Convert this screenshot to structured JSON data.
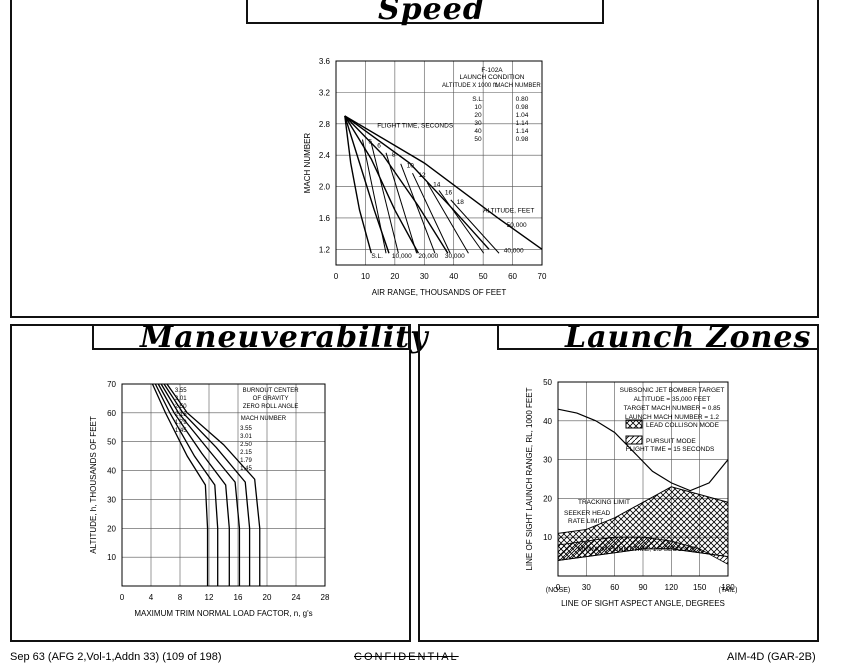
{
  "footer": {
    "left": "Sep 63 (AFG 2,Vol-1,Addn 33) (109 of 198)",
    "center": "CONFIDENTIAL",
    "right": "AIM-4D (GAR-2B)"
  },
  "panels": {
    "speed_title": "Speed",
    "maneuver_title": "Maneuverability",
    "launch_title": "Launch Zones"
  },
  "chart_data": [
    {
      "type": "line",
      "title": "Speed",
      "xlabel": "AIR RANGE, THOUSANDS OF FEET",
      "ylabel": "MACH NUMBER",
      "xlim": [
        0,
        70
      ],
      "ylim": [
        1.0,
        3.6
      ],
      "xticks": [
        "0",
        "10",
        "20",
        "30",
        "40",
        "50",
        "60",
        "70"
      ],
      "yticks": [
        "1.2",
        "1.6",
        "2.0",
        "2.4",
        "2.8",
        "3.2",
        "3.6"
      ],
      "grid": true,
      "legend": {
        "header": [
          "F-102A",
          "LAUNCH CONDITION"
        ],
        "col1": "ALTITUDE X 1000 ft.",
        "col2": "MACH NUMBER",
        "rows": [
          [
            "S.L.",
            "0.80"
          ],
          [
            "10",
            "0.98"
          ],
          [
            "20",
            "1.04"
          ],
          [
            "30",
            "1.14"
          ],
          [
            "40",
            "1.14"
          ],
          [
            "50",
            "0.98"
          ]
        ]
      },
      "labels": {
        "flight_time": "FLIGHT TIME, SECONDS",
        "altitude": "ALTITUDE, FEET"
      },
      "series": [
        {
          "name": "S.L.",
          "x": [
            3,
            5,
            8,
            12
          ],
          "y": [
            2.9,
            2.3,
            1.7,
            1.15
          ]
        },
        {
          "name": "10,000",
          "x": [
            3,
            8,
            13,
            18
          ],
          "y": [
            2.9,
            2.3,
            1.7,
            1.15
          ]
        },
        {
          "name": "20,000",
          "x": [
            3,
            12,
            20,
            28
          ],
          "y": [
            2.9,
            2.35,
            1.7,
            1.15
          ]
        },
        {
          "name": "30,000",
          "x": [
            3,
            16,
            28,
            38
          ],
          "y": [
            2.9,
            2.4,
            1.75,
            1.15
          ]
        },
        {
          "name": "40,000",
          "x": [
            3,
            25,
            40,
            52
          ],
          "y": [
            2.9,
            2.3,
            1.7,
            1.2
          ]
        },
        {
          "name": "50,000",
          "x": [
            3,
            30,
            55,
            70
          ],
          "y": [
            2.9,
            2.3,
            1.6,
            1.2
          ]
        }
      ],
      "time_labels": [
        {
          "text": "5",
          "x": 11,
          "y": 2.55
        },
        {
          "text": "6",
          "x": 14,
          "y": 2.5
        },
        {
          "text": "8",
          "x": 19,
          "y": 2.38
        },
        {
          "text": "10",
          "x": 24,
          "y": 2.24
        },
        {
          "text": "12",
          "x": 28,
          "y": 2.12
        },
        {
          "text": "14",
          "x": 33,
          "y": 2.0
        },
        {
          "text": "16",
          "x": 37,
          "y": 1.9
        },
        {
          "text": "18",
          "x": 41,
          "y": 1.78
        }
      ],
      "alt_labels": [
        {
          "text": "S.L.",
          "x": 12,
          "y": 1.13
        },
        {
          "text": "10,000",
          "x": 19,
          "y": 1.13
        },
        {
          "text": "20,000",
          "x": 28,
          "y": 1.13
        },
        {
          "text": "30,000",
          "x": 37,
          "y": 1.13
        },
        {
          "text": "40,000",
          "x": 57,
          "y": 1.2
        },
        {
          "text": "50,000",
          "x": 58,
          "y": 1.52
        }
      ]
    },
    {
      "type": "line",
      "title": "Maneuverability",
      "xlabel": "MAXIMUM TRIM NORMAL LOAD FACTOR, n, g's",
      "ylabel": "ALTITUDE, h, THOUSANDS OF FEET",
      "xlim": [
        0,
        28
      ],
      "ylim": [
        0,
        70
      ],
      "xticks": [
        "0",
        "4",
        "8",
        "12",
        "16",
        "20",
        "24",
        "28"
      ],
      "yticks": [
        "10",
        "20",
        "30",
        "40",
        "50",
        "60",
        "70"
      ],
      "grid": true,
      "notes": [
        "BURNOUT CENTER",
        "OF GRAVITY",
        "ZERO ROLL ANGLE"
      ],
      "legend_title": "MACH NUMBER",
      "legend_values": [
        "3.55",
        "3.01",
        "2.50",
        "2.15",
        "1.79",
        "1.45"
      ],
      "series": [
        {
          "name": "1.45",
          "x": [
            11.8,
            11.8,
            11.5,
            9.0,
            6.0,
            4.2
          ],
          "y": [
            0,
            20,
            35,
            45,
            60,
            70
          ]
        },
        {
          "name": "1.79",
          "x": [
            13.2,
            13.2,
            12.8,
            10.0,
            6.6,
            4.6
          ],
          "y": [
            0,
            20,
            35,
            45,
            60,
            70
          ]
        },
        {
          "name": "2.15",
          "x": [
            14.8,
            14.8,
            14.3,
            11.0,
            7.2,
            5.0
          ],
          "y": [
            0,
            20,
            35,
            46,
            60,
            70
          ]
        },
        {
          "name": "2.50",
          "x": [
            16.2,
            16.2,
            15.6,
            12.0,
            7.8,
            5.4
          ],
          "y": [
            0,
            20,
            36,
            47,
            60,
            70
          ]
        },
        {
          "name": "3.01",
          "x": [
            17.6,
            17.6,
            17.0,
            13.0,
            8.4,
            5.8
          ],
          "y": [
            0,
            20,
            36,
            48,
            60,
            70
          ]
        },
        {
          "name": "3.55",
          "x": [
            19.0,
            19.0,
            18.3,
            14.0,
            9.0,
            6.2
          ],
          "y": [
            0,
            20,
            37,
            49,
            60,
            70
          ]
        }
      ]
    },
    {
      "type": "area",
      "title": "Launch Zones",
      "xlabel": "LINE OF SIGHT ASPECT ANGLE, DEGREES",
      "ylabel": "LINE OF SIGHT LAUNCH RANGE, RL, 1000 FEET",
      "xlim": [
        0,
        180
      ],
      "ylim": [
        0,
        50
      ],
      "xticks": [
        "0",
        "30",
        "60",
        "90",
        "120",
        "150",
        "180"
      ],
      "yticks": [
        "10",
        "20",
        "30",
        "40",
        "50"
      ],
      "x_end_labels": [
        "(NOSE)",
        "(TAIL)"
      ],
      "grid": true,
      "notes": [
        "SUBSONIC JET BOMBER TARGET",
        "ALTITUDE = 35,000 FEET",
        "TARGET MACH NUMBER = 0.85",
        "LAUNCH MACH NUMBER = 1.2"
      ],
      "legend": [
        "LEAD COLLISON MODE",
        "PURSUIT MODE"
      ],
      "flight_time": "FLIGHT TIME = 15 SECONDS",
      "annotations": [
        "TRACKING LIMIT",
        "SEEKER HEAD",
        "RATE LIMIT",
        "MINIMUM FLIGHT TIME, 1.5 SECONDS"
      ],
      "series": [
        {
          "name": "upper",
          "x": [
            0,
            20,
            40,
            60,
            80,
            100,
            120,
            140,
            160,
            180
          ],
          "y": [
            43,
            42,
            40,
            37,
            32,
            27,
            24,
            22,
            24,
            30
          ]
        },
        {
          "name": "outer",
          "x": [
            0,
            30,
            60,
            90,
            120,
            150,
            180
          ],
          "y": [
            11,
            12,
            15,
            19,
            23,
            21,
            19
          ]
        },
        {
          "name": "inner",
          "x": [
            0,
            30,
            60,
            90,
            120,
            150,
            180
          ],
          "y": [
            4,
            5,
            6,
            7,
            7,
            6,
            5
          ]
        },
        {
          "name": "min_time",
          "x": [
            0,
            30,
            60,
            90,
            120,
            150,
            180
          ],
          "y": [
            8,
            9,
            10,
            10,
            9,
            7,
            3
          ]
        }
      ]
    }
  ]
}
